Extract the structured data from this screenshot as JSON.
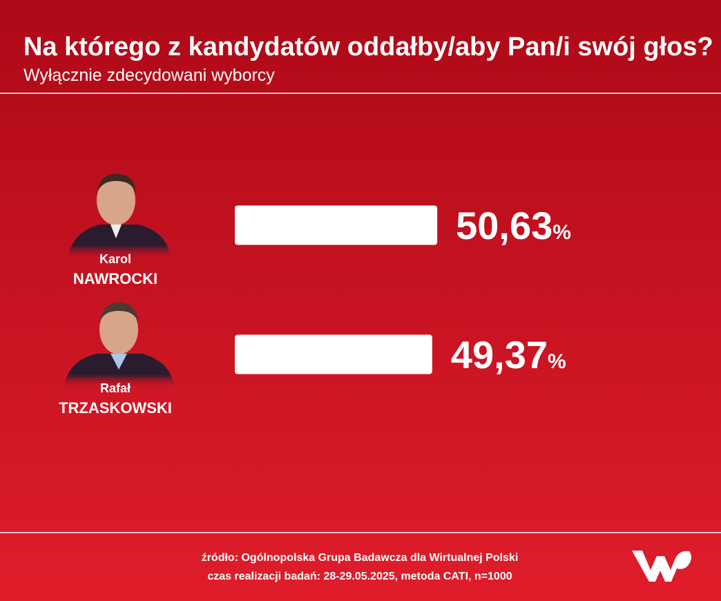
{
  "chart_data": {
    "type": "bar",
    "orientation": "horizontal",
    "title": "Na którego z kandydatów oddałby/aby Pan/i swój głos?",
    "subtitle": "Wyłącznie zdecydowani wyborcy",
    "first_names": [
      "Karol",
      "Rafał"
    ],
    "categories": [
      "NAWROCKI",
      "TRZASKOWSKI"
    ],
    "values": [
      50.63,
      49.37
    ],
    "value_labels": [
      "50,63%",
      "49,37%"
    ],
    "color": "#ffffff",
    "xlim": [
      0,
      100
    ],
    "source": [
      "źródło: Ogólnopolska Grupa Badawcza dla Wirtualnej Polski",
      "czas realizacji badań: 28-29.05.2025, metoda CATI, n=1000"
    ]
  }
}
